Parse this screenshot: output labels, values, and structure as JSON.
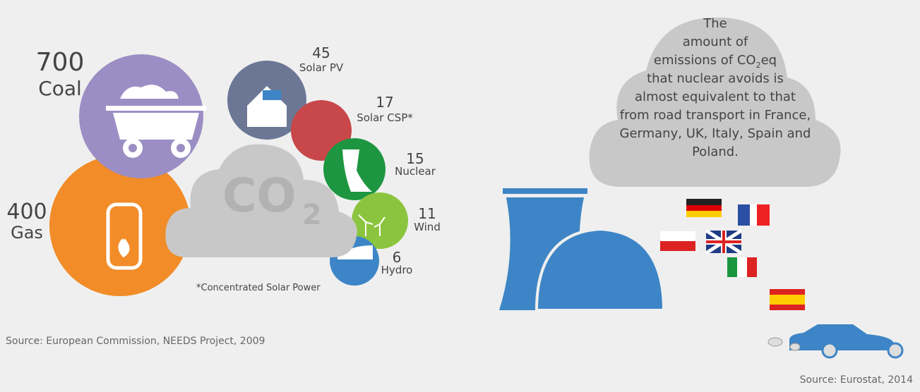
{
  "emissions": [
    {
      "value": 700,
      "label": "Coal"
    },
    {
      "value": 400,
      "label": "Gas"
    },
    {
      "value": 45,
      "label": "Solar PV"
    },
    {
      "value": 17,
      "label": "Solar CSP*"
    },
    {
      "value": 15,
      "label": "Nuclear"
    },
    {
      "value": 11,
      "label": "Wind"
    },
    {
      "value": 6,
      "label": "Hydro"
    }
  ],
  "co2_icon": {
    "text": "CO",
    "sub": "2"
  },
  "footnote": "*Concentrated Solar Power",
  "left_source": "Source: European Commission, NEEDS Project, 2009",
  "cloud_text": {
    "lines_before": [
      "The",
      "amount of"
    ],
    "co2_line": [
      "emissions of CO",
      "2",
      "eq"
    ],
    "lines_after": [
      "that nuclear avoids is",
      "almost equivalent to that",
      "from road transport in France,",
      "Germany, UK, Italy, Spain and",
      "Poland."
    ]
  },
  "right_source": "Source: Eurostat, 2014"
}
